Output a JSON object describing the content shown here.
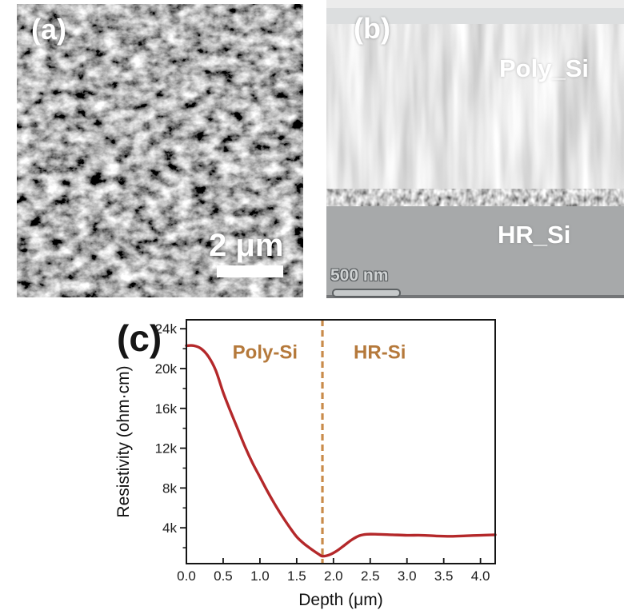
{
  "figure": {
    "panel_a": {
      "label": "(a)",
      "scalebar_text": "2 μm"
    },
    "panel_b": {
      "label": "(b)",
      "poly_label": "Poly_Si",
      "substrate_label": "HR_Si",
      "scalebar_text": "500 nm"
    },
    "panel_c": {
      "label": "(c)"
    }
  },
  "colors": {
    "curve_red": "#b4282a",
    "divider_tan": "#c98b4a",
    "annotation_brown": "#b5793b",
    "axis_black": "#161616"
  },
  "chart_data": {
    "type": "line",
    "xlabel": "Depth (μm)",
    "ylabel": "Resistivity (ohm·cm)",
    "xlim": [
      0,
      4.2
    ],
    "ylim": [
      400,
      24900
    ],
    "grid": false,
    "legend": false,
    "x_ticks": [
      0.0,
      0.5,
      1.0,
      1.5,
      2.0,
      2.5,
      3.0,
      3.5,
      4.0
    ],
    "x_tick_labels": [
      "0.0",
      "0.5",
      "1.0",
      "1.5",
      "2.0",
      "2.5",
      "3.0",
      "3.5",
      "4.0"
    ],
    "y_ticks": [
      4000,
      8000,
      12000,
      16000,
      20000,
      24000
    ],
    "y_tick_labels": [
      "4k",
      "8k",
      "12k",
      "16k",
      "20k",
      "24k"
    ],
    "y_minor_ticks": [
      2000,
      6000,
      10000,
      14000,
      18000,
      22000
    ],
    "series": [
      {
        "name": "resistivity",
        "color": "#b4282a",
        "x": [
          0.0,
          0.1,
          0.2,
          0.3,
          0.4,
          0.5,
          0.6,
          0.7,
          0.8,
          0.9,
          1.0,
          1.1,
          1.2,
          1.3,
          1.4,
          1.5,
          1.6,
          1.7,
          1.8,
          1.85,
          1.95,
          2.05,
          2.15,
          2.25,
          2.35,
          2.45,
          2.6,
          2.8,
          3.0,
          3.2,
          3.4,
          3.6,
          3.8,
          4.0,
          4.2
        ],
        "y": [
          22300,
          22300,
          22000,
          21200,
          19800,
          17600,
          15700,
          13900,
          12100,
          10500,
          9100,
          7700,
          6400,
          5200,
          4100,
          3100,
          2400,
          1850,
          1350,
          1150,
          1300,
          1700,
          2250,
          2800,
          3200,
          3350,
          3350,
          3300,
          3250,
          3250,
          3180,
          3150,
          3200,
          3250,
          3300
        ]
      }
    ],
    "vline": {
      "x": 1.85,
      "style": "dashed",
      "color": "#c98b4a"
    },
    "annotations": [
      {
        "text": "Poly-Si",
        "x": 1.07,
        "y": 21000,
        "color": "#b5793b"
      },
      {
        "text": "HR-Si",
        "x": 2.63,
        "y": 21000,
        "color": "#b5793b"
      }
    ]
  }
}
